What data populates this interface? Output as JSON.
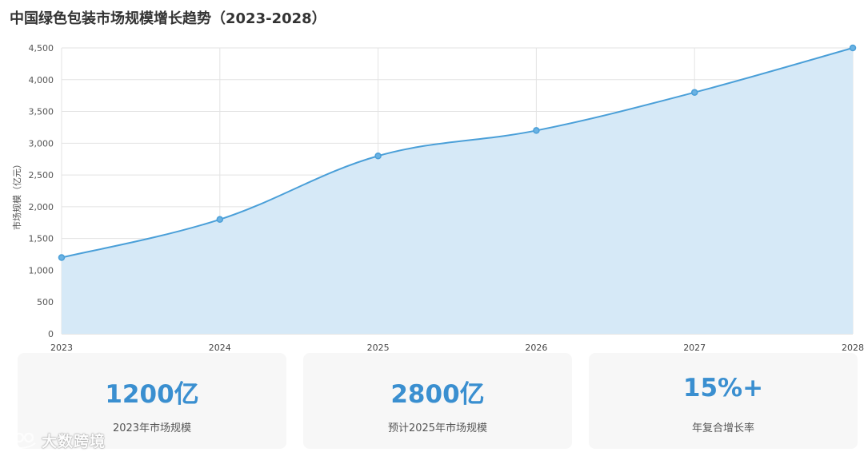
{
  "title": "中国绿色包装市场规模增长趋势（2023-2028）",
  "chart_data": {
    "type": "area",
    "x": [
      "2023",
      "2024",
      "2025",
      "2026",
      "2027",
      "2028"
    ],
    "series": [
      {
        "values": [
          1200,
          1800,
          2800,
          3200,
          3800,
          4500
        ]
      }
    ],
    "ylabel": "市场规模（亿元）",
    "xlabel": "",
    "ylim": [
      0,
      4500
    ],
    "yticks": [
      "0",
      "500",
      "1,000",
      "1,500",
      "2,000",
      "2,500",
      "3,000",
      "3,500",
      "4,000",
      "4,500"
    ],
    "grid": true,
    "line_color": "#4a9fd8",
    "fill_color": "#d6e9f7"
  },
  "stats": [
    {
      "value": "1200亿",
      "label": "2023年市场规模"
    },
    {
      "value": "2800亿",
      "label": "预计2025年市场规模"
    },
    {
      "value": "15%+",
      "label": "年复合增长率"
    }
  ],
  "watermark": {
    "text": "大数跨境",
    "icon": "logo-icon"
  }
}
